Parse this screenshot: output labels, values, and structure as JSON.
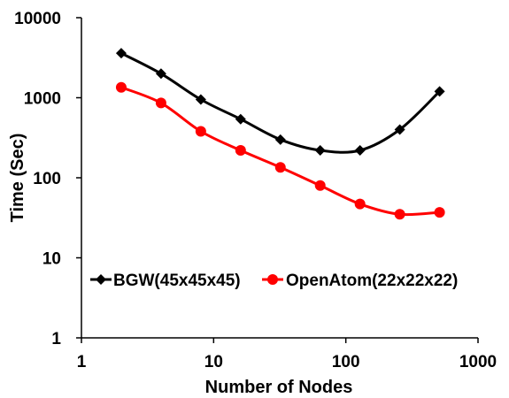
{
  "chart_data": {
    "type": "line",
    "xscale": "log",
    "yscale": "log",
    "xlim": [
      1,
      1000
    ],
    "ylim": [
      1,
      10000
    ],
    "xticks": [
      "1",
      "10",
      "100",
      "1000"
    ],
    "yticks": [
      "1",
      "10",
      "100",
      "1000",
      "10000"
    ],
    "xlabel": "Number of Nodes",
    "ylabel": "Time (Sec)",
    "grid": false,
    "legend": "inside-bottom",
    "series": [
      {
        "name": "BGW(45x45x45)",
        "color": "#000000",
        "marker": "diamond",
        "x": [
          2,
          4,
          8,
          16,
          32,
          64,
          128,
          256,
          512
        ],
        "y": [
          3600,
          2000,
          950,
          540,
          300,
          220,
          220,
          400,
          1200
        ]
      },
      {
        "name": "OpenAtom(22x22x22)",
        "color": "#ff0000",
        "marker": "circle",
        "x": [
          2,
          4,
          8,
          16,
          32,
          64,
          128,
          256,
          512
        ],
        "y": [
          1350,
          860,
          380,
          220,
          135,
          80,
          47,
          35,
          37
        ]
      }
    ]
  }
}
